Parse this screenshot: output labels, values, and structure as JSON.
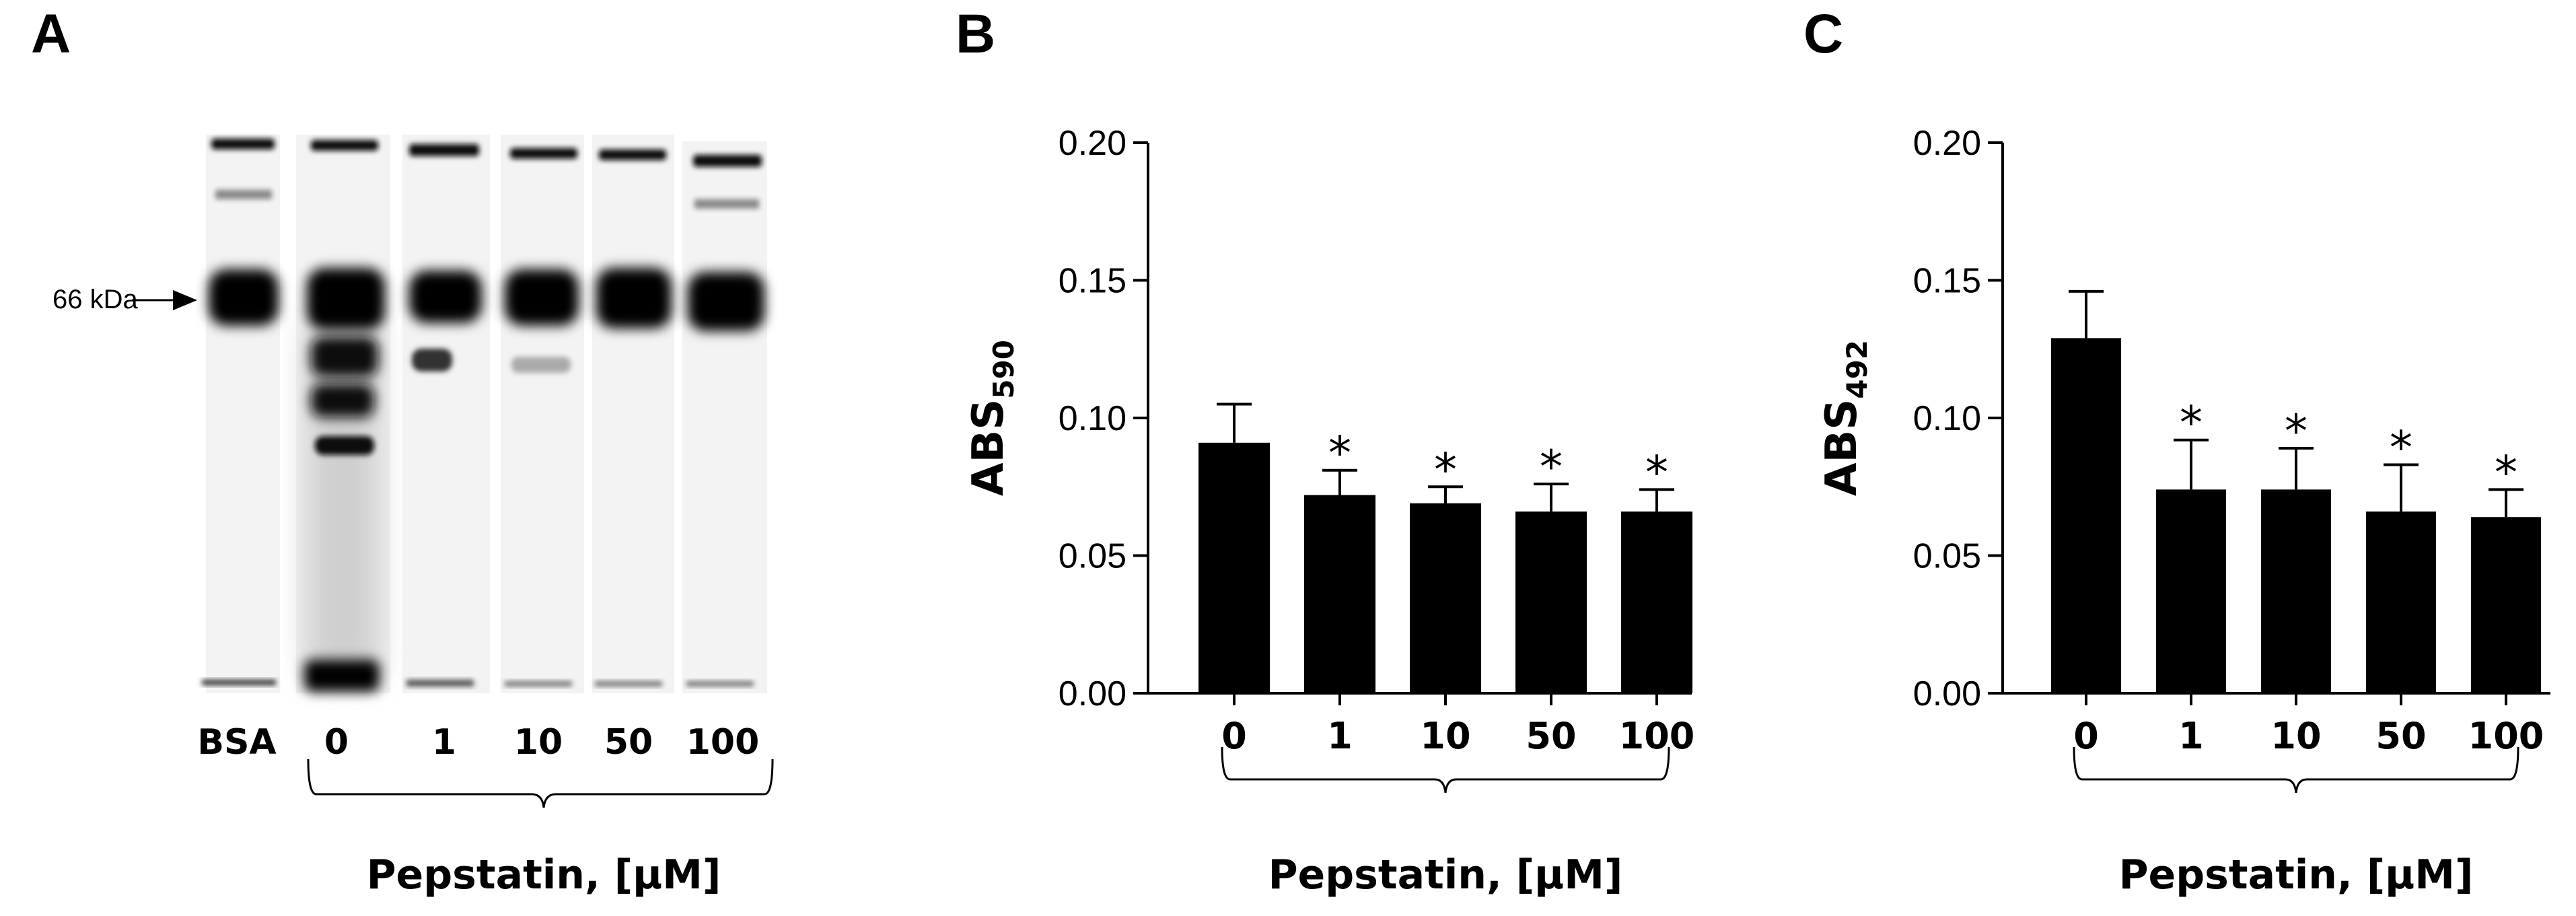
{
  "panels": {
    "a": {
      "letter": "A"
    },
    "b": {
      "letter": "B"
    },
    "c": {
      "letter": "C"
    }
  },
  "gel": {
    "marker_label": "66 kDa",
    "lanes": [
      "BSA",
      "0",
      "1",
      "10",
      "50",
      "100"
    ],
    "group_label": "Pepstatin, [µM]"
  },
  "chart_data": [
    {
      "type": "bar",
      "categories": [
        "0",
        "1",
        "10",
        "50",
        "100"
      ],
      "values": [
        0.091,
        0.072,
        0.069,
        0.066,
        0.066
      ],
      "errors": [
        0.014,
        0.009,
        0.006,
        0.01,
        0.008
      ],
      "significance": [
        "",
        "*",
        "*",
        "*",
        "*"
      ],
      "ylabel": "ABS",
      "ylabel_subscript": "590",
      "xlabel": "Pepstatin, [µM]",
      "ylim": [
        0,
        0.2
      ],
      "yticks": [
        0.0,
        0.05,
        0.1,
        0.15,
        0.2
      ],
      "ytick_labels": [
        "0.00",
        "0.05",
        "0.10",
        "0.15",
        "0.20"
      ],
      "bar_color": "#000000",
      "grid": false
    },
    {
      "type": "bar",
      "categories": [
        "0",
        "1",
        "10",
        "50",
        "100"
      ],
      "values": [
        0.129,
        0.074,
        0.074,
        0.066,
        0.064
      ],
      "errors": [
        0.017,
        0.018,
        0.015,
        0.017,
        0.01
      ],
      "significance": [
        "",
        "*",
        "*",
        "*",
        "*"
      ],
      "ylabel": "ABS",
      "ylabel_subscript": "492",
      "xlabel": "Pepstatin, [µM]",
      "ylim": [
        0,
        0.2
      ],
      "yticks": [
        0.0,
        0.05,
        0.1,
        0.15,
        0.2
      ],
      "ytick_labels": [
        "0.00",
        "0.05",
        "0.10",
        "0.15",
        "0.20"
      ],
      "bar_color": "#000000",
      "grid": false
    }
  ]
}
